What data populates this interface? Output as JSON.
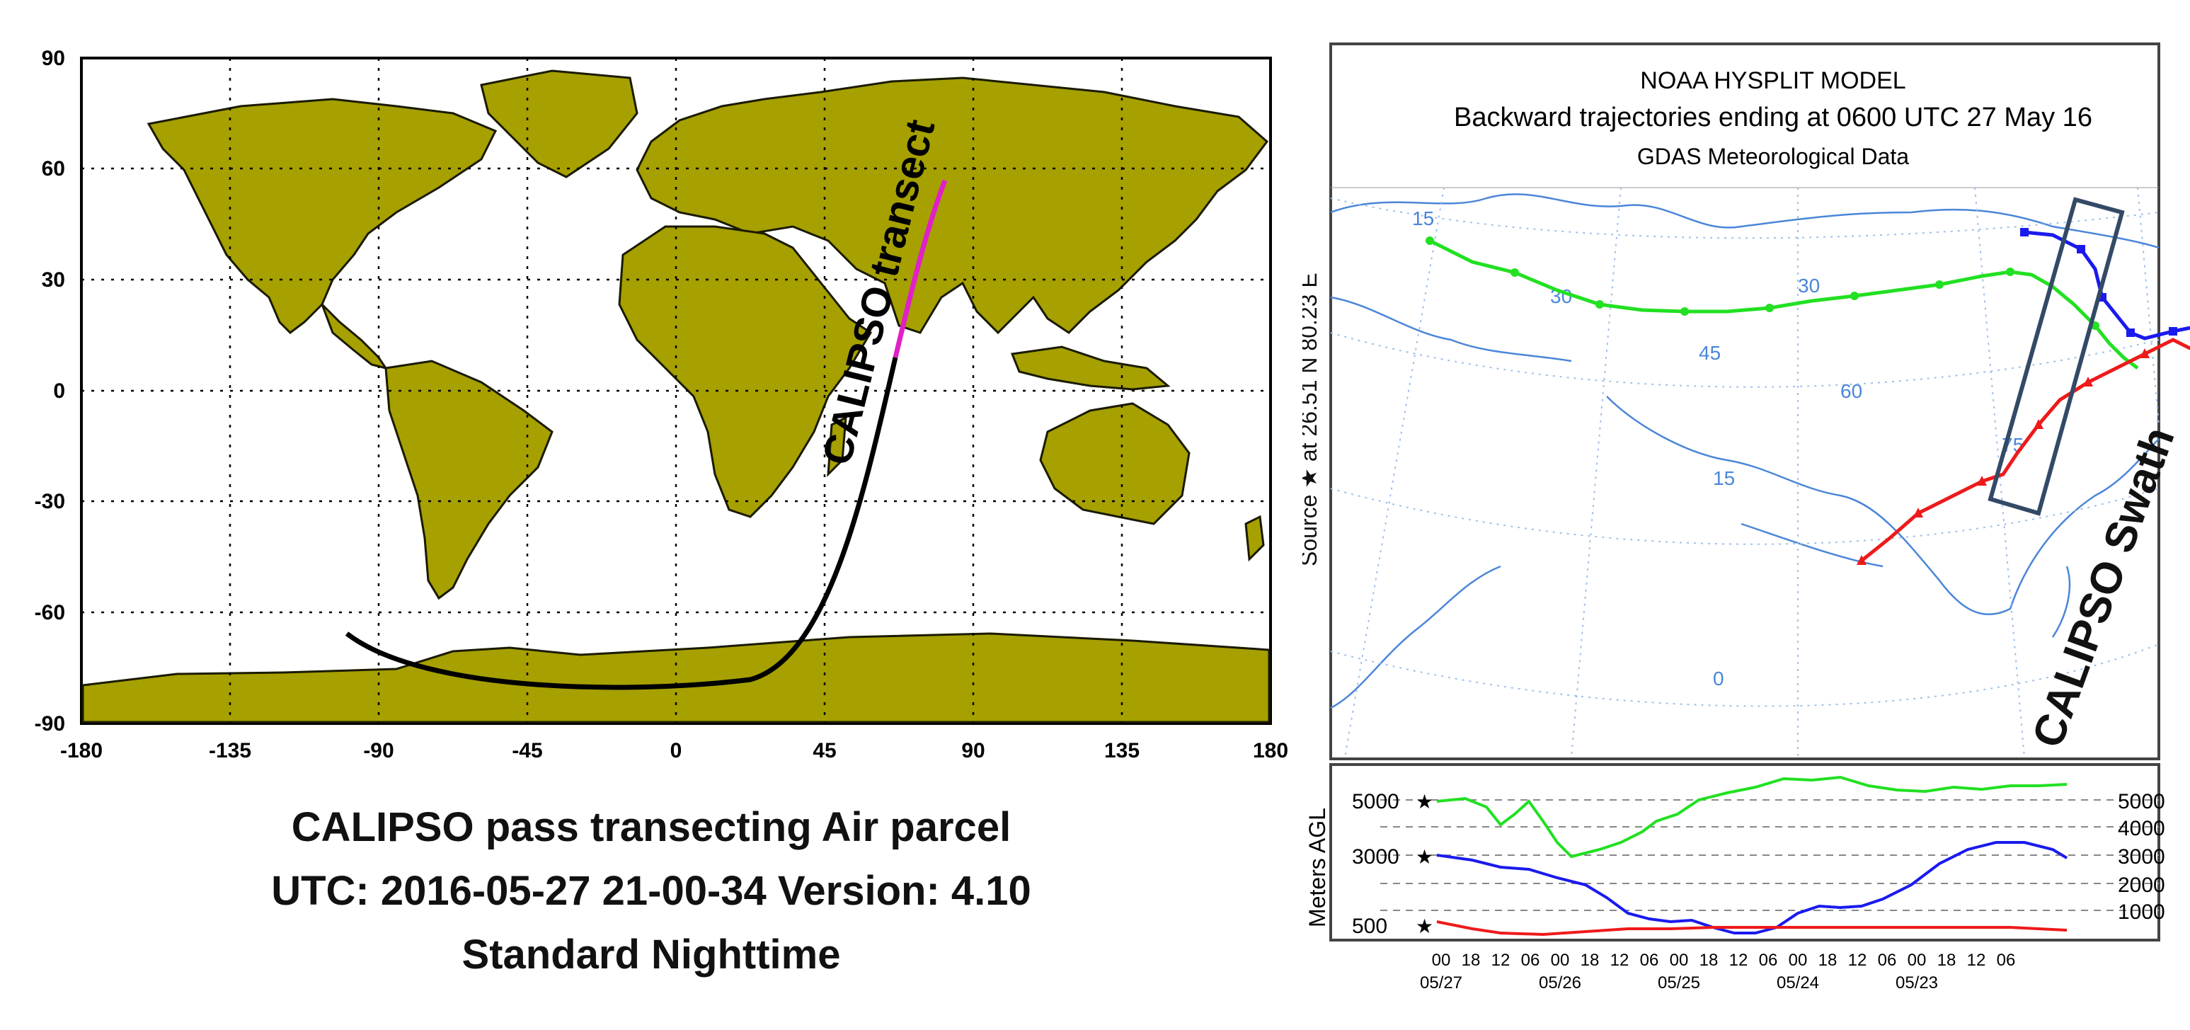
{
  "left_map": {
    "caption_line1": "CALIPSO pass transecting Air parcel",
    "caption_line2": "UTC: 2016-05-27  21-00-34  Version: 4.10",
    "caption_line3": "Standard  Nighttime",
    "transect_label": "CALIPSO transect",
    "x_ticks": [
      "-180",
      "-135",
      "-90",
      "-45",
      "0",
      "45",
      "90",
      "135",
      "180"
    ],
    "y_ticks": [
      "90",
      "60",
      "30",
      "0",
      "-30",
      "-60",
      "-90"
    ],
    "land_color": "#a6a000",
    "track_color": "#000000",
    "transect_color": "#e020c8"
  },
  "right_panel": {
    "title": "NOAA HYSPLIT MODEL",
    "subtitle": "Backward trajectories ending at 0600 UTC 27 May 16",
    "data_source": "GDAS Meteorological Data",
    "source_label": "Source ★  at   26.51 N   80.23 E",
    "swath_label": "CALIPSO Swath",
    "map_grid_labels": [
      "15",
      "30",
      "30",
      "45",
      "60",
      "75",
      "15",
      "0"
    ],
    "height_axis_label": "Meters AGL",
    "height_ticks_left": [
      "5000",
      "3000",
      "500"
    ],
    "height_ticks_right": [
      "5000",
      "4000",
      "3000",
      "2000",
      "1000"
    ],
    "time_ticks": [
      "00",
      "18",
      "12",
      "06",
      "00",
      "18",
      "12",
      "06",
      "00",
      "18",
      "12",
      "06",
      "00",
      "18",
      "12",
      "06",
      "00",
      "18",
      "12",
      "06"
    ],
    "date_ticks": [
      "05/27",
      "05/26",
      "05/25",
      "05/24",
      "05/23"
    ],
    "series_colors": {
      "green": "#22e022",
      "blue": "#1a1aee",
      "red": "#ee1a1a"
    }
  }
}
